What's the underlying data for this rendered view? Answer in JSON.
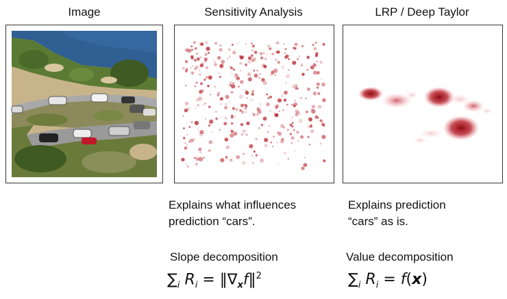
{
  "columns": [
    {
      "title": "Image"
    },
    {
      "title": "Sensitivity Analysis",
      "caption": [
        "Explains what influences",
        "prediction “cars”."
      ],
      "decomposition": "Slope decomposition"
    },
    {
      "title": "LRP / Deep Taylor",
      "caption": [
        "Explains prediction",
        "“cars” as is."
      ],
      "decomposition": "Value decomposition"
    }
  ],
  "heatmap_color": "#b4141e",
  "photo_colors": {
    "sea": "#2f5f93",
    "road": "#a9a9a9",
    "vegetation": "#4f6a2e",
    "rocks": "#c8b48a"
  }
}
